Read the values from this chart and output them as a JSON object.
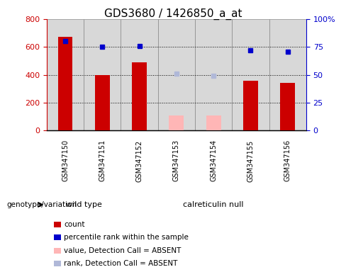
{
  "title": "GDS3680 / 1426850_a_at",
  "samples": [
    "GSM347150",
    "GSM347151",
    "GSM347152",
    "GSM347153",
    "GSM347154",
    "GSM347155",
    "GSM347156"
  ],
  "red_bar_values": [
    670,
    400,
    490,
    null,
    null,
    355,
    340
  ],
  "pink_bar_values": [
    null,
    null,
    null,
    110,
    110,
    null,
    null
  ],
  "blue_dot_values": [
    80,
    75,
    76,
    null,
    null,
    72,
    71
  ],
  "lavender_dot_values": [
    null,
    null,
    null,
    51,
    49,
    null,
    null
  ],
  "left_ylim": [
    0,
    800
  ],
  "right_ylim": [
    0,
    100
  ],
  "left_yticks": [
    0,
    200,
    400,
    600,
    800
  ],
  "right_yticks": [
    0,
    25,
    50,
    75,
    100
  ],
  "right_yticklabels": [
    "0",
    "25",
    "50",
    "75",
    "100%"
  ],
  "left_ycolor": "#cc0000",
  "right_ycolor": "#0000cc",
  "grid_values": [
    200,
    400,
    600
  ],
  "wild_type_count": 2,
  "calreticulin_null_count": 5,
  "genotype_label": "genotype/variation",
  "wild_type_label": "wild type",
  "calreticulin_label": "calreticulin null",
  "legend_items": [
    {
      "label": "count",
      "color": "#cc0000",
      "type": "rect"
    },
    {
      "label": "percentile rank within the sample",
      "color": "#0000cc",
      "type": "rect"
    },
    {
      "label": "value, Detection Call = ABSENT",
      "color": "#ffb6b6",
      "type": "rect"
    },
    {
      "label": "rank, Detection Call = ABSENT",
      "color": "#b0b8d8",
      "type": "rect"
    }
  ],
  "bar_width": 0.4,
  "panel_bg": "#d8d8d8",
  "green_bg": "#77dd77",
  "title_fontsize": 11
}
